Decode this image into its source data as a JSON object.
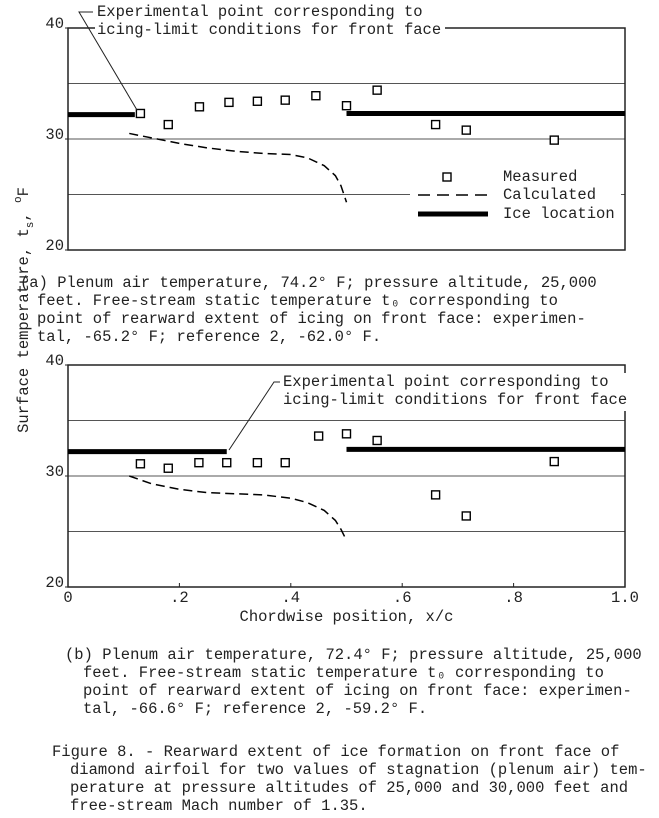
{
  "chart_data": [
    {
      "type": "line",
      "xlim": [
        0,
        1
      ],
      "ylim": [
        20,
        40
      ],
      "yticks": [
        20,
        30,
        40
      ],
      "ygrid": [
        25,
        30,
        35
      ],
      "legend": "lower right",
      "annotation": [
        "Experimental point corresponding to",
        "icing-limit conditions for front face"
      ],
      "series": [
        {
          "name": "Measured",
          "marker": "square",
          "color": "#000",
          "x": [
            0.13,
            0.18,
            0.236,
            0.289,
            0.34,
            0.39,
            0.445,
            0.5,
            0.555,
            0.66,
            0.715,
            0.873
          ],
          "values": [
            32.3,
            31.3,
            32.9,
            33.3,
            33.4,
            33.5,
            33.9,
            33.0,
            34.4,
            31.3,
            30.8,
            29.9
          ]
        },
        {
          "name": "Calculated",
          "line": "dashed",
          "color": "#000",
          "x": [
            0.11,
            0.15,
            0.2,
            0.25,
            0.3,
            0.35,
            0.4,
            0.43,
            0.46,
            0.48,
            0.49,
            0.5
          ],
          "values": [
            30.5,
            30.1,
            29.6,
            29.2,
            28.9,
            28.7,
            28.6,
            28.3,
            27.6,
            26.7,
            25.8,
            24.3
          ]
        },
        {
          "name": "Ice location",
          "line": "thick",
          "color": "#000",
          "segments": [
            {
              "x": [
                0,
                0.12
              ],
              "values": [
                32.2,
                32.2
              ]
            },
            {
              "x": [
                0.5,
                1
              ],
              "values": [
                32.3,
                32.3
              ]
            }
          ]
        }
      ],
      "caption": [
        "(a) Plenum air temperature, 74.2° F; pressure altitude, 25,000",
        "feet. Free-stream static temperature  t₀  corresponding to",
        "point of rearward extent of icing on front face: experimen-",
        "tal, -65.2° F; reference 2, -62.0° F."
      ]
    },
    {
      "type": "line",
      "xlim": [
        0,
        1
      ],
      "ylim": [
        20,
        40
      ],
      "yticks": [
        20,
        30,
        40
      ],
      "ygrid": [
        25,
        30,
        35
      ],
      "xticks": [
        0,
        {
          "value": 0.2,
          "label": ".2"
        },
        {
          "value": 0.4,
          "label": ".4"
        },
        {
          "value": 0.6,
          "label": ".6"
        },
        {
          "value": 0.8,
          "label": ".8"
        },
        {
          "value": 1,
          "label": "1.0"
        }
      ],
      "xlabel": "Chordwise position, x/c",
      "annotation": [
        "Experimental point corresponding to",
        "icing-limit conditions for front face"
      ],
      "series": [
        {
          "name": "Measured",
          "marker": "square",
          "color": "#000",
          "x": [
            0.13,
            0.18,
            0.235,
            0.285,
            0.34,
            0.39,
            0.45,
            0.5,
            0.555,
            0.66,
            0.715,
            0.873
          ],
          "values": [
            31.1,
            30.7,
            31.2,
            31.2,
            31.2,
            31.2,
            33.6,
            33.8,
            33.2,
            28.3,
            26.4,
            31.3
          ]
        },
        {
          "name": "Calculated",
          "line": "dashed",
          "color": "#000",
          "x": [
            0.11,
            0.15,
            0.2,
            0.25,
            0.3,
            0.35,
            0.4,
            0.43,
            0.46,
            0.48,
            0.49,
            0.5
          ],
          "values": [
            30.0,
            29.3,
            28.8,
            28.5,
            28.4,
            28.3,
            28.0,
            27.6,
            26.9,
            26.0,
            25.2,
            24.2
          ]
        },
        {
          "name": "Ice location",
          "line": "thick",
          "color": "#000",
          "segments": [
            {
              "x": [
                0,
                0.285
              ],
              "values": [
                32.2,
                32.2
              ]
            },
            {
              "x": [
                0.5,
                1
              ],
              "values": [
                32.4,
                32.4
              ]
            }
          ]
        }
      ],
      "caption": [
        "(b) Plenum air temperature, 72.4° F; pressure altitude, 25,000",
        "feet. Free-stream static temperature  t₀  corresponding to",
        "point of rearward extent of icing on front face: experimen-",
        "tal, -66.6° F; reference 2, -59.2° F."
      ]
    }
  ],
  "y_label": [
    "Surface temperature, t",
    "s",
    ", ",
    "o",
    "F"
  ],
  "figure_caption": [
    "Figure 8. - Rearward extent of ice formation on front face of",
    "diamond airfoil for two values of stagnation (plenum air) tem-",
    "perature at pressure altitudes of 25,000 and 30,000 feet and",
    "free-stream Mach number of 1.35."
  ]
}
